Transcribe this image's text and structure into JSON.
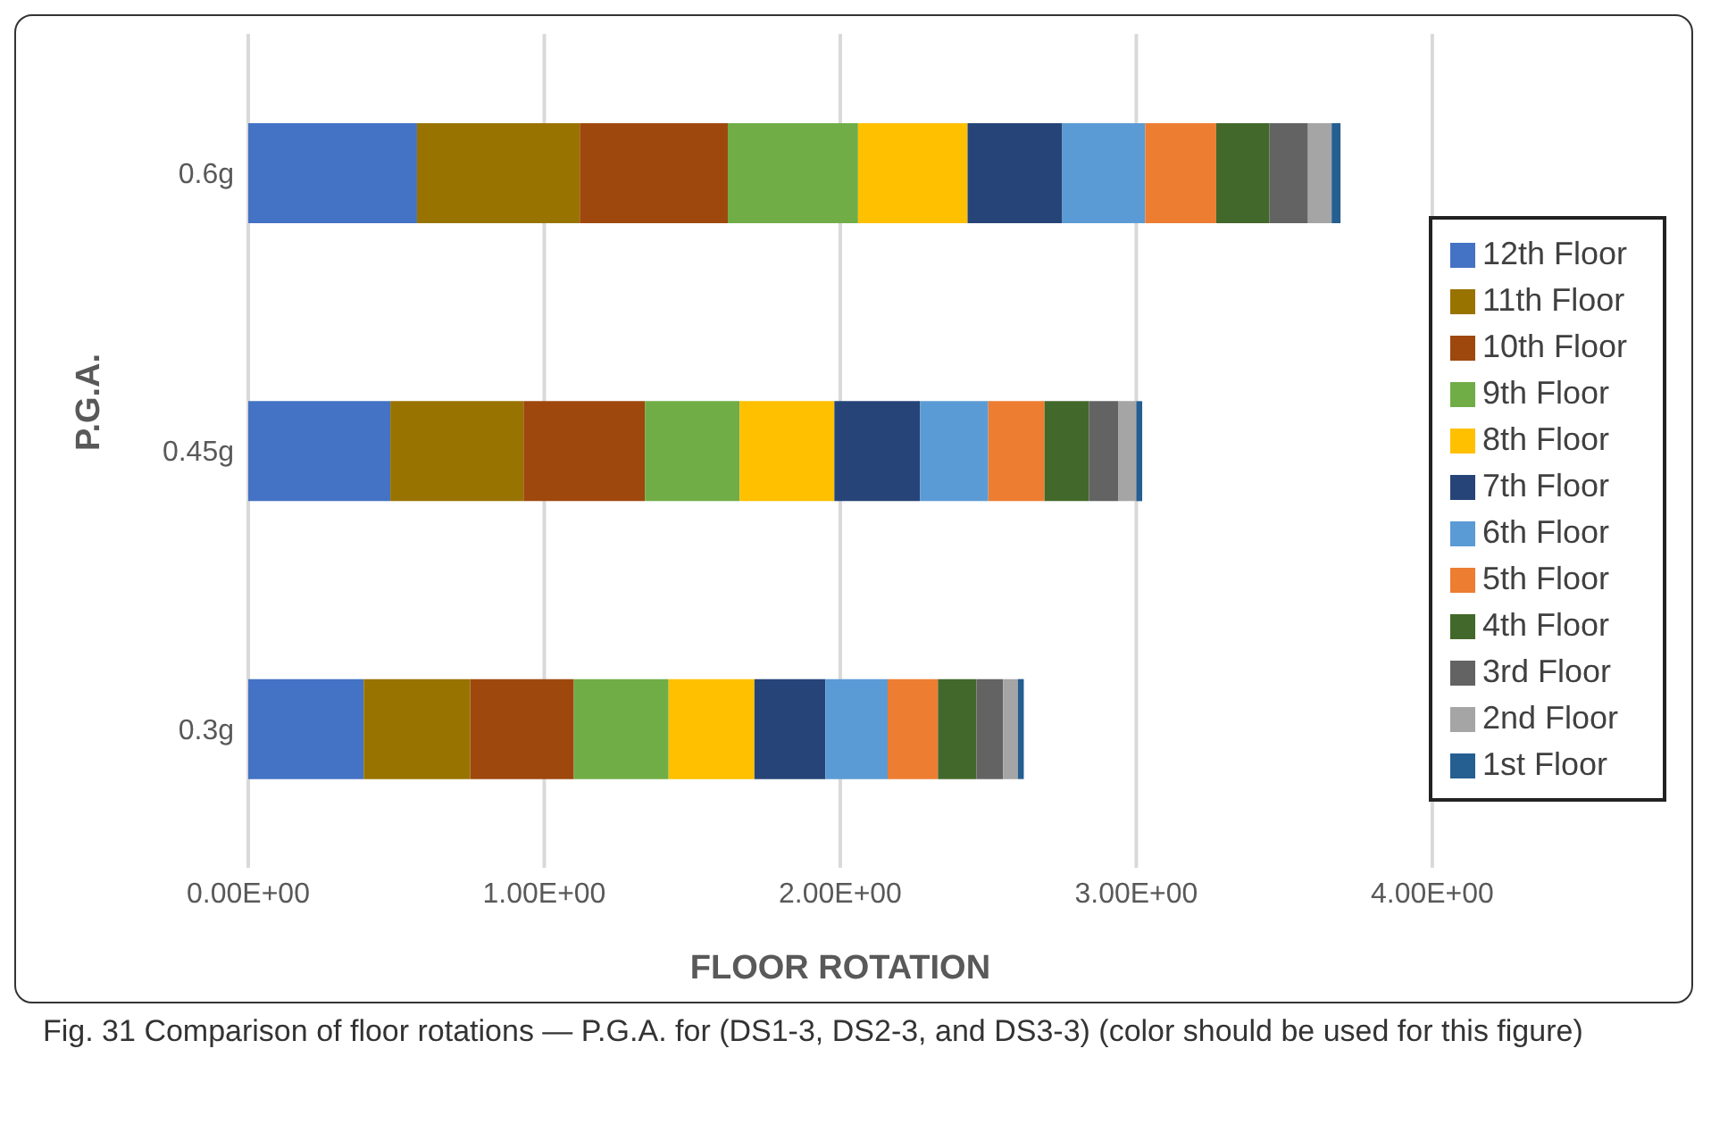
{
  "chart_data": {
    "type": "bar",
    "orientation": "horizontal",
    "stacked": true,
    "xlabel": "FLOOR ROTATION",
    "ylabel": "P.G.A.",
    "categories": [
      "0.6g",
      "0.45g",
      "0.3g"
    ],
    "series": [
      {
        "name": "12th Floor",
        "color": "#4472c4",
        "values": [
          0.57,
          0.48,
          0.39
        ]
      },
      {
        "name": "11th Floor",
        "color": "#997300",
        "values": [
          0.55,
          0.45,
          0.36
        ]
      },
      {
        "name": "10th Floor",
        "color": "#9e480e",
        "values": [
          0.5,
          0.41,
          0.35
        ]
      },
      {
        "name": "9th Floor",
        "color": "#70ad47",
        "values": [
          0.44,
          0.32,
          0.32
        ]
      },
      {
        "name": "8th Floor",
        "color": "#ffc000",
        "values": [
          0.37,
          0.32,
          0.29
        ]
      },
      {
        "name": "7th Floor",
        "color": "#264478",
        "values": [
          0.32,
          0.29,
          0.24
        ]
      },
      {
        "name": "6th Floor",
        "color": "#5b9bd5",
        "values": [
          0.28,
          0.23,
          0.21
        ]
      },
      {
        "name": "5th Floor",
        "color": "#ed7d31",
        "values": [
          0.24,
          0.19,
          0.17
        ]
      },
      {
        "name": "4th Floor",
        "color": "#43682b",
        "values": [
          0.18,
          0.15,
          0.13
        ]
      },
      {
        "name": "3rd Floor",
        "color": "#636363",
        "values": [
          0.13,
          0.1,
          0.09
        ]
      },
      {
        "name": "2nd Floor",
        "color": "#a5a5a5",
        "values": [
          0.08,
          0.06,
          0.05
        ]
      },
      {
        "name": "1st Floor",
        "color": "#255e91",
        "values": [
          0.03,
          0.02,
          0.02
        ]
      }
    ],
    "xlim": [
      0,
      4
    ],
    "xticks": [
      {
        "value": 0,
        "label": "0.00E+00"
      },
      {
        "value": 1,
        "label": "1.00E+00"
      },
      {
        "value": 2,
        "label": "2.00E+00"
      },
      {
        "value": 3,
        "label": "3.00E+00"
      },
      {
        "value": 4,
        "label": "4.00E+00"
      }
    ],
    "grid": "x",
    "legend": "right",
    "annotations": [
      "Fig. 31 Comparison of floor rotations — P.G.A. for (DS1-3, DS2-3, and DS3-3) (color should be used for this figure)"
    ]
  }
}
